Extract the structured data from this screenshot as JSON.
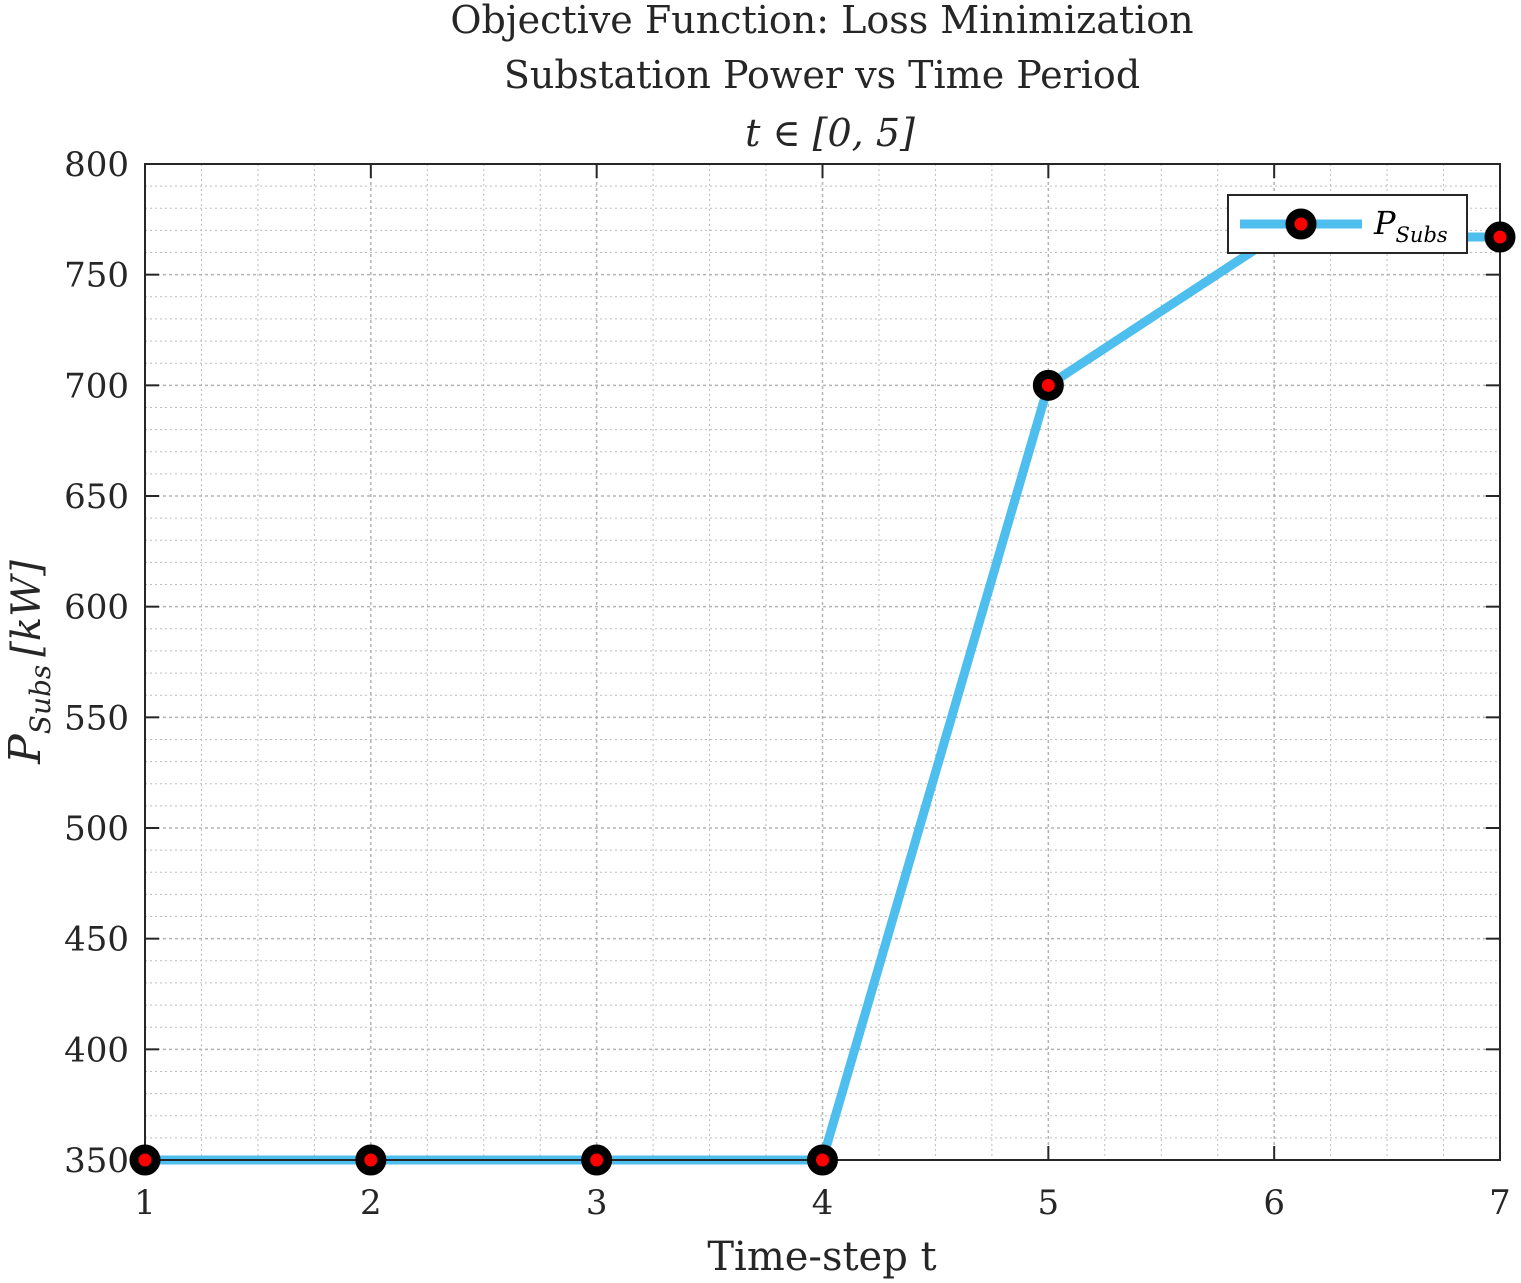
{
  "chart_data": {
    "type": "line",
    "title": [
      "Objective Function: Loss Minimization",
      "Substation Power vs Time Period",
      "t ∈ [0, 5]"
    ],
    "xlabel": "Time-step t",
    "ylabel": "P_Subs [kW]",
    "ylabel_main": "P",
    "ylabel_sub": "Subs",
    "ylabel_unit": "[kW]",
    "xlim": [
      1,
      7
    ],
    "ylim": [
      350,
      800
    ],
    "xticks": [
      1,
      2,
      3,
      4,
      5,
      6,
      7
    ],
    "yticks": [
      350,
      400,
      450,
      500,
      550,
      600,
      650,
      700,
      750,
      800
    ],
    "grid": true,
    "minor_grid": true,
    "legend_position": "top-right",
    "series": [
      {
        "name": "P_Subs",
        "name_main": "P",
        "name_sub": "Subs",
        "x": [
          1,
          2,
          3,
          4,
          5,
          6,
          7
        ],
        "y": [
          350,
          350,
          350,
          350,
          700,
          767,
          767
        ],
        "line_color": "#4DBEEE",
        "marker_edge_color": "#000000",
        "marker_face_color": "#FF0000"
      }
    ]
  }
}
